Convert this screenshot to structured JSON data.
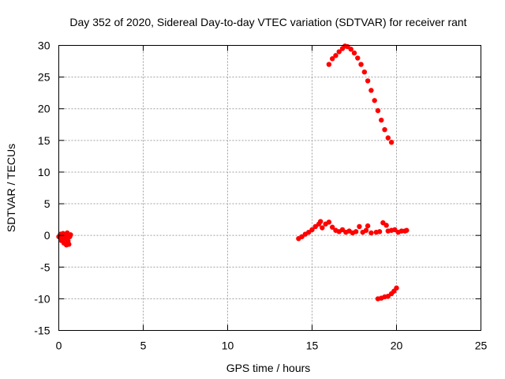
{
  "chart_data": {
    "type": "scatter",
    "title": "Day 352 of 2020, Sidereal Day-to-day VTEC variation (SDTVAR) for receiver rant",
    "xlabel": "GPS time / hours",
    "ylabel": "SDTVAR / TECUs",
    "xlim": [
      0,
      25
    ],
    "ylim": [
      -15,
      30
    ],
    "xticks": [
      0,
      5,
      10,
      15,
      20,
      25
    ],
    "yticks": [
      -15,
      -10,
      -5,
      0,
      5,
      10,
      15,
      20,
      25,
      30
    ],
    "grid": true,
    "legend": "none",
    "series_color": "#ff0000",
    "series": [
      {
        "values": [
          [
            0.0,
            -0.2
          ],
          [
            0.1,
            0.2
          ],
          [
            0.15,
            -0.8
          ],
          [
            0.25,
            0.3
          ],
          [
            0.3,
            -1.2
          ],
          [
            0.35,
            0.0
          ],
          [
            0.4,
            -0.5
          ],
          [
            0.45,
            -1.5
          ],
          [
            0.5,
            0.4
          ],
          [
            0.55,
            -0.9
          ],
          [
            0.6,
            -1.4
          ],
          [
            0.65,
            -0.2
          ],
          [
            0.7,
            0.1
          ],
          [
            0.2,
            -0.4
          ],
          [
            0.5,
            -0.1
          ],
          [
            14.2,
            -0.5
          ],
          [
            14.4,
            -0.2
          ],
          [
            14.6,
            0.2
          ],
          [
            14.8,
            0.5
          ],
          [
            15.0,
            0.9
          ],
          [
            15.2,
            1.4
          ],
          [
            15.4,
            1.8
          ],
          [
            15.5,
            2.2
          ],
          [
            15.6,
            1.2
          ],
          [
            15.8,
            1.8
          ],
          [
            16.0,
            2.1
          ],
          [
            16.2,
            1.3
          ],
          [
            16.4,
            0.8
          ],
          [
            16.6,
            0.6
          ],
          [
            16.8,
            0.9
          ],
          [
            17.0,
            0.5
          ],
          [
            17.2,
            0.7
          ],
          [
            17.4,
            0.4
          ],
          [
            17.6,
            0.6
          ],
          [
            17.8,
            1.4
          ],
          [
            18.0,
            0.5
          ],
          [
            18.2,
            0.8
          ],
          [
            18.3,
            1.5
          ],
          [
            18.5,
            0.4
          ],
          [
            18.8,
            0.5
          ],
          [
            19.0,
            0.6
          ],
          [
            19.2,
            2.0
          ],
          [
            19.4,
            1.6
          ],
          [
            19.5,
            0.7
          ],
          [
            19.7,
            0.8
          ],
          [
            19.9,
            0.9
          ],
          [
            20.1,
            0.5
          ],
          [
            20.3,
            0.7
          ],
          [
            20.5,
            0.7
          ],
          [
            20.6,
            0.8
          ],
          [
            16.0,
            27.0
          ],
          [
            16.2,
            27.9
          ],
          [
            16.4,
            28.4
          ],
          [
            16.6,
            29.0
          ],
          [
            16.8,
            29.5
          ],
          [
            16.95,
            29.9
          ],
          [
            17.1,
            29.8
          ],
          [
            17.3,
            29.4
          ],
          [
            17.5,
            28.8
          ],
          [
            17.7,
            28.0
          ],
          [
            17.9,
            27.0
          ],
          [
            18.1,
            25.8
          ],
          [
            18.3,
            24.4
          ],
          [
            18.5,
            22.9
          ],
          [
            18.7,
            21.3
          ],
          [
            18.9,
            19.7
          ],
          [
            19.1,
            18.2
          ],
          [
            19.3,
            16.7
          ],
          [
            19.5,
            15.4
          ],
          [
            19.7,
            14.7
          ],
          [
            18.9,
            -10.0
          ],
          [
            19.1,
            -9.9
          ],
          [
            19.3,
            -9.7
          ],
          [
            19.5,
            -9.6
          ],
          [
            19.7,
            -9.2
          ],
          [
            19.85,
            -8.8
          ],
          [
            20.0,
            -8.3
          ]
        ]
      }
    ]
  }
}
